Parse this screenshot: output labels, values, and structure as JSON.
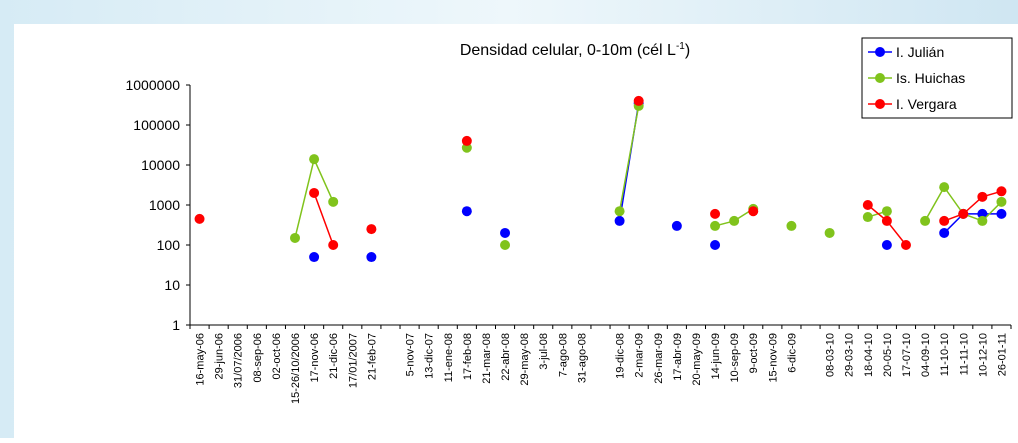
{
  "chart_data": {
    "type": "line",
    "title": {
      "text": "Densidad celular, 0-10m (cél L",
      "superscript": "-1",
      "suffix": ")"
    },
    "categories": [
      "16-may-06",
      "29-jun-06",
      "31/07/2006",
      "08-sep-06",
      "02-oct-06",
      "15-26/10/2006",
      "17-nov-06",
      "21-dic-06",
      "17/01/2007",
      "21-feb-07",
      null,
      "5-nov-07",
      "13-dic-07",
      "11-ene-08",
      "17-feb-08",
      "21-mar-08",
      "22-abr-08",
      "29-may-08",
      "3-jul-08",
      "7-ago-08",
      "31-ago-08",
      null,
      "19-dic-08",
      "2-mar-09",
      "26-mar-09",
      "17-abr-09",
      "20-may-09",
      "14-jun-09",
      "10-sep-09",
      "9-oct-09",
      "15-nov-09",
      "6-dic-09",
      null,
      "08-03-10",
      "29-03-10",
      "18-04-10",
      "20-05-10",
      "17-07-10",
      "04-09-10",
      "11-10-10",
      "11-11-10",
      "10-12-10",
      "26-01-11"
    ],
    "series": [
      {
        "name": "I. Julián",
        "color": "#0000ff",
        "values": [
          null,
          null,
          null,
          null,
          null,
          null,
          50,
          null,
          null,
          50,
          null,
          null,
          null,
          null,
          700,
          null,
          200,
          null,
          null,
          null,
          null,
          null,
          400,
          350000,
          null,
          300,
          null,
          100,
          null,
          null,
          null,
          null,
          null,
          null,
          null,
          null,
          100,
          null,
          null,
          200,
          600,
          600,
          600
        ]
      },
      {
        "name": "Is. Huichas",
        "color": "#80c31c",
        "values": [
          null,
          null,
          null,
          null,
          null,
          150,
          14000,
          1200,
          null,
          null,
          null,
          null,
          null,
          null,
          27000,
          null,
          100,
          null,
          null,
          null,
          null,
          null,
          700,
          300000,
          null,
          null,
          null,
          300,
          400,
          800,
          null,
          300,
          null,
          200,
          null,
          500,
          700,
          null,
          400,
          2800,
          600,
          400,
          1200
        ]
      },
      {
        "name": "I. Vergara",
        "color": "#ff0000",
        "values": [
          450,
          null,
          null,
          null,
          null,
          null,
          2000,
          100,
          null,
          250,
          null,
          null,
          null,
          null,
          40000,
          null,
          null,
          null,
          null,
          null,
          null,
          null,
          null,
          400000,
          null,
          null,
          null,
          600,
          null,
          700,
          null,
          null,
          null,
          null,
          null,
          1000,
          400,
          100,
          null,
          400,
          600,
          1600,
          2200
        ]
      }
    ],
    "ylim": [
      1,
      1000000
    ],
    "yticks": [
      1,
      10,
      100,
      1000,
      10000,
      100000,
      1000000
    ],
    "log_y": true,
    "grid": false,
    "legend": "top-right"
  }
}
